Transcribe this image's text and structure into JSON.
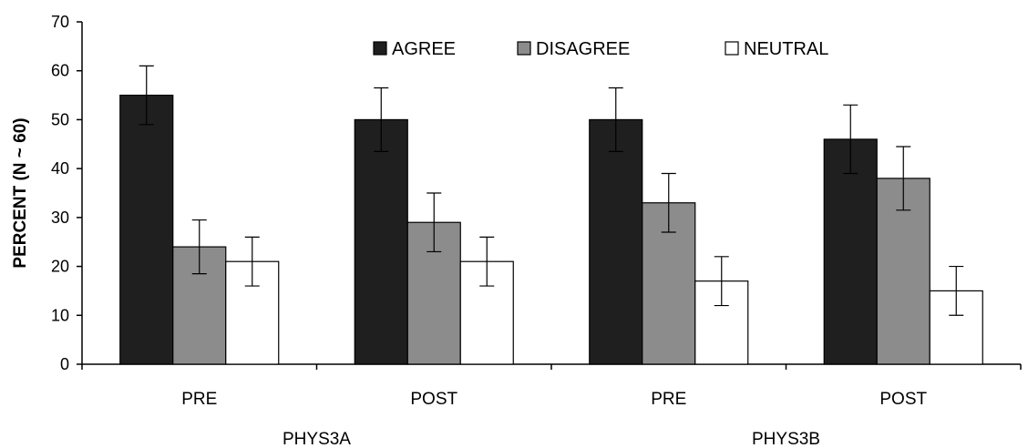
{
  "chart_data": {
    "type": "bar",
    "categories": [
      "PRE",
      "POST",
      "PRE",
      "POST"
    ],
    "groups": [
      {
        "label": "PHYS3A",
        "categories": [
          0,
          1
        ]
      },
      {
        "label": "PHYS3B",
        "categories": [
          2,
          3
        ]
      }
    ],
    "series": [
      {
        "name": "AGREE",
        "values": [
          55,
          50,
          50,
          46
        ],
        "errors": [
          6,
          6.5,
          6.5,
          7
        ],
        "color": "#1f1f1f"
      },
      {
        "name": "DISAGREE",
        "values": [
          24,
          29,
          33,
          38
        ],
        "errors": [
          5.5,
          6,
          6,
          6.5
        ],
        "color": "#8c8c8c"
      },
      {
        "name": "NEUTRAL",
        "values": [
          21,
          21,
          17,
          15
        ],
        "errors": [
          5,
          5,
          5,
          5
        ],
        "color": "#ffffff"
      }
    ],
    "title": "",
    "xlabel": "",
    "ylabel": "PERCENT (N ~ 60)",
    "ylim": [
      0,
      70
    ],
    "yticks": [
      0,
      10,
      20,
      30,
      40,
      50,
      60,
      70
    ],
    "grid": false,
    "legend": "top-center",
    "error_bars": true
  }
}
